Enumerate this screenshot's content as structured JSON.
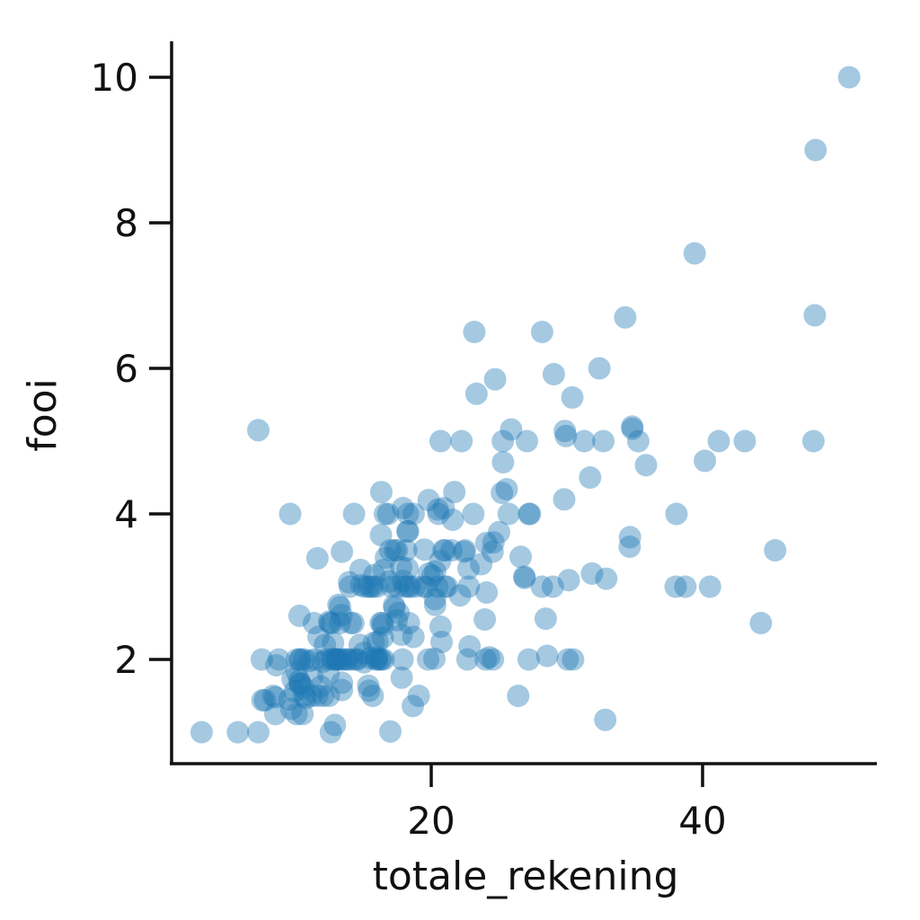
{
  "chart_data": {
    "type": "scatter",
    "title": "",
    "xlabel": "totale_rekening",
    "ylabel": "fooi",
    "xlim": [
      0,
      53
    ],
    "ylim": [
      0,
      10.5
    ],
    "xticks": [
      20,
      40
    ],
    "yticks": [
      2,
      4,
      6,
      8,
      10
    ],
    "grid": false,
    "legend": null,
    "marker_color": "#1f77b4",
    "marker_alpha": 0.4,
    "points": [
      [
        16.99,
        1.01
      ],
      [
        10.34,
        1.66
      ],
      [
        21.01,
        3.5
      ],
      [
        23.68,
        3.31
      ],
      [
        24.59,
        3.61
      ],
      [
        25.29,
        4.71
      ],
      [
        8.77,
        2.0
      ],
      [
        26.88,
        3.12
      ],
      [
        15.04,
        1.96
      ],
      [
        14.78,
        3.23
      ],
      [
        10.27,
        1.71
      ],
      [
        35.26,
        5.0
      ],
      [
        15.42,
        1.57
      ],
      [
        18.43,
        3.0
      ],
      [
        14.83,
        3.02
      ],
      [
        21.58,
        3.92
      ],
      [
        10.33,
        1.67
      ],
      [
        16.29,
        3.71
      ],
      [
        16.97,
        3.5
      ],
      [
        20.65,
        3.35
      ],
      [
        17.92,
        4.08
      ],
      [
        20.29,
        2.75
      ],
      [
        15.77,
        2.23
      ],
      [
        39.42,
        7.58
      ],
      [
        19.82,
        3.18
      ],
      [
        17.81,
        2.34
      ],
      [
        13.37,
        2.0
      ],
      [
        12.69,
        2.0
      ],
      [
        21.7,
        4.3
      ],
      [
        19.65,
        3.0
      ],
      [
        9.55,
        1.45
      ],
      [
        18.35,
        2.5
      ],
      [
        15.06,
        3.0
      ],
      [
        20.69,
        2.45
      ],
      [
        17.78,
        3.27
      ],
      [
        24.06,
        3.6
      ],
      [
        16.31,
        2.0
      ],
      [
        16.93,
        3.07
      ],
      [
        18.69,
        2.31
      ],
      [
        31.27,
        5.0
      ],
      [
        16.04,
        2.24
      ],
      [
        17.46,
        2.54
      ],
      [
        13.94,
        3.06
      ],
      [
        9.68,
        1.32
      ],
      [
        30.4,
        5.6
      ],
      [
        18.29,
        3.0
      ],
      [
        22.23,
        5.0
      ],
      [
        32.4,
        6.0
      ],
      [
        28.55,
        2.05
      ],
      [
        18.04,
        3.0
      ],
      [
        12.54,
        2.5
      ],
      [
        10.29,
        2.6
      ],
      [
        34.81,
        5.2
      ],
      [
        9.94,
        1.56
      ],
      [
        25.56,
        4.34
      ],
      [
        19.49,
        3.51
      ],
      [
        38.01,
        3.0
      ],
      [
        26.41,
        1.5
      ],
      [
        11.24,
        1.76
      ],
      [
        48.27,
        6.73
      ],
      [
        20.29,
        3.21
      ],
      [
        13.81,
        2.0
      ],
      [
        11.02,
        1.98
      ],
      [
        18.29,
        3.76
      ],
      [
        17.59,
        2.64
      ],
      [
        20.08,
        3.15
      ],
      [
        16.45,
        2.47
      ],
      [
        3.07,
        1.0
      ],
      [
        20.23,
        2.01
      ],
      [
        15.01,
        2.09
      ],
      [
        12.02,
        1.97
      ],
      [
        17.07,
        3.0
      ],
      [
        26.86,
        3.14
      ],
      [
        25.28,
        5.0
      ],
      [
        14.73,
        2.2
      ],
      [
        10.51,
        1.25
      ],
      [
        17.92,
        3.08
      ],
      [
        27.2,
        4.0
      ],
      [
        22.76,
        3.0
      ],
      [
        17.29,
        2.71
      ],
      [
        19.44,
        3.0
      ],
      [
        16.66,
        3.4
      ],
      [
        10.07,
        1.83
      ],
      [
        32.68,
        5.0
      ],
      [
        15.98,
        2.03
      ],
      [
        34.83,
        5.17
      ],
      [
        13.03,
        2.0
      ],
      [
        18.28,
        4.0
      ],
      [
        24.71,
        5.85
      ],
      [
        21.16,
        3.0
      ],
      [
        28.97,
        3.0
      ],
      [
        22.49,
        3.5
      ],
      [
        5.75,
        1.0
      ],
      [
        16.32,
        4.3
      ],
      [
        22.75,
        3.25
      ],
      [
        40.17,
        4.73
      ],
      [
        27.28,
        4.0
      ],
      [
        12.03,
        1.5
      ],
      [
        21.01,
        3.0
      ],
      [
        12.46,
        1.5
      ],
      [
        11.35,
        2.5
      ],
      [
        15.38,
        3.0
      ],
      [
        44.3,
        2.5
      ],
      [
        22.42,
        3.48
      ],
      [
        20.92,
        4.08
      ],
      [
        15.36,
        1.64
      ],
      [
        20.49,
        4.06
      ],
      [
        25.21,
        4.29
      ],
      [
        18.24,
        3.76
      ],
      [
        14.31,
        4.0
      ],
      [
        14.0,
        3.0
      ],
      [
        7.25,
        1.0
      ],
      [
        38.07,
        4.0
      ],
      [
        23.95,
        2.55
      ],
      [
        25.71,
        4.0
      ],
      [
        17.31,
        3.5
      ],
      [
        29.93,
        5.07
      ],
      [
        10.65,
        1.5
      ],
      [
        12.43,
        1.8
      ],
      [
        24.08,
        2.92
      ],
      [
        11.69,
        2.31
      ],
      [
        13.42,
        1.68
      ],
      [
        14.26,
        2.5
      ],
      [
        15.95,
        2.0
      ],
      [
        12.48,
        2.52
      ],
      [
        29.8,
        4.2
      ],
      [
        8.52,
        1.48
      ],
      [
        14.52,
        2.0
      ],
      [
        11.38,
        2.0
      ],
      [
        22.82,
        2.18
      ],
      [
        19.08,
        1.5
      ],
      [
        20.27,
        2.83
      ],
      [
        11.17,
        1.5
      ],
      [
        12.26,
        2.0
      ],
      [
        18.26,
        3.25
      ],
      [
        8.51,
        1.25
      ],
      [
        10.33,
        2.0
      ],
      [
        14.15,
        2.0
      ],
      [
        16.0,
        2.0
      ],
      [
        13.16,
        2.75
      ],
      [
        17.47,
        3.5
      ],
      [
        34.3,
        6.7
      ],
      [
        41.19,
        5.0
      ],
      [
        27.05,
        5.0
      ],
      [
        16.43,
        2.3
      ],
      [
        8.35,
        1.5
      ],
      [
        18.64,
        1.36
      ],
      [
        11.87,
        1.63
      ],
      [
        9.78,
        1.73
      ],
      [
        7.51,
        2.0
      ],
      [
        14.07,
        2.5
      ],
      [
        13.13,
        2.0
      ],
      [
        17.26,
        2.74
      ],
      [
        24.55,
        2.0
      ],
      [
        19.77,
        2.0
      ],
      [
        29.85,
        5.14
      ],
      [
        48.17,
        5.0
      ],
      [
        25.0,
        3.75
      ],
      [
        13.39,
        2.61
      ],
      [
        16.49,
        2.0
      ],
      [
        21.5,
        3.5
      ],
      [
        12.66,
        2.5
      ],
      [
        16.21,
        2.0
      ],
      [
        13.81,
        2.0
      ],
      [
        17.51,
        3.0
      ],
      [
        24.52,
        3.48
      ],
      [
        20.76,
        2.24
      ],
      [
        31.71,
        4.5
      ],
      [
        10.59,
        1.61
      ],
      [
        10.63,
        2.0
      ],
      [
        50.81,
        10.0
      ],
      [
        15.81,
        3.16
      ],
      [
        7.25,
        5.15
      ],
      [
        31.85,
        3.18
      ],
      [
        16.82,
        4.0
      ],
      [
        32.9,
        3.11
      ],
      [
        17.89,
        2.0
      ],
      [
        14.48,
        2.0
      ],
      [
        9.6,
        4.0
      ],
      [
        34.63,
        3.55
      ],
      [
        34.65,
        3.68
      ],
      [
        23.33,
        5.65
      ],
      [
        45.35,
        3.5
      ],
      [
        23.17,
        6.5
      ],
      [
        40.55,
        3.0
      ],
      [
        20.69,
        5.0
      ],
      [
        20.9,
        3.5
      ],
      [
        30.46,
        2.0
      ],
      [
        18.15,
        3.5
      ],
      [
        23.1,
        4.0
      ],
      [
        15.69,
        1.5
      ],
      [
        19.81,
        4.19
      ],
      [
        28.44,
        2.56
      ],
      [
        15.48,
        2.02
      ],
      [
        16.58,
        4.0
      ],
      [
        7.56,
        1.44
      ],
      [
        10.34,
        2.0
      ],
      [
        43.11,
        5.0
      ],
      [
        13.0,
        2.0
      ],
      [
        13.51,
        2.0
      ],
      [
        18.71,
        4.0
      ],
      [
        12.74,
        2.01
      ],
      [
        13.0,
        2.0
      ],
      [
        16.4,
        2.5
      ],
      [
        20.53,
        4.0
      ],
      [
        16.47,
        3.23
      ],
      [
        26.59,
        3.41
      ],
      [
        38.73,
        3.0
      ],
      [
        24.27,
        2.03
      ],
      [
        12.76,
        2.23
      ],
      [
        30.06,
        2.0
      ],
      [
        25.89,
        5.16
      ],
      [
        48.33,
        9.0
      ],
      [
        13.27,
        2.5
      ],
      [
        28.17,
        6.5
      ],
      [
        12.9,
        1.1
      ],
      [
        28.15,
        3.0
      ],
      [
        11.59,
        1.5
      ],
      [
        7.74,
        1.44
      ],
      [
        30.14,
        3.09
      ],
      [
        12.16,
        2.2
      ],
      [
        13.42,
        3.48
      ],
      [
        8.58,
        1.92
      ],
      [
        15.98,
        3.0
      ],
      [
        13.42,
        1.58
      ],
      [
        16.27,
        2.5
      ],
      [
        10.09,
        2.0
      ],
      [
        20.45,
        3.0
      ],
      [
        13.28,
        2.72
      ],
      [
        22.12,
        2.88
      ],
      [
        24.01,
        2.0
      ],
      [
        15.69,
        3.0
      ],
      [
        11.61,
        3.39
      ],
      [
        10.77,
        1.47
      ],
      [
        15.53,
        3.0
      ],
      [
        10.07,
        1.25
      ],
      [
        12.6,
        1.0
      ],
      [
        32.83,
        1.17
      ],
      [
        35.83,
        4.67
      ],
      [
        29.03,
        5.92
      ],
      [
        27.18,
        2.0
      ],
      [
        22.67,
        2.0
      ],
      [
        17.82,
        1.75
      ],
      [
        18.78,
        3.0
      ]
    ]
  }
}
